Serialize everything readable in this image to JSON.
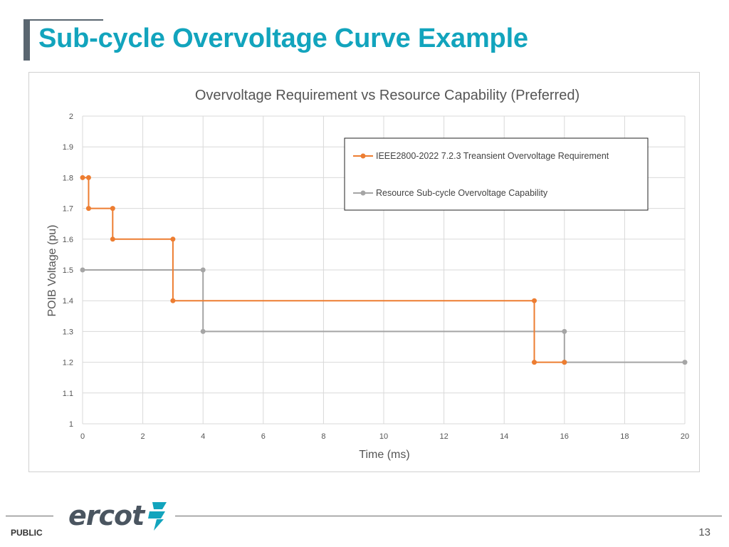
{
  "slide": {
    "title": "Sub-cycle Overvoltage Curve Example",
    "footer_label": "PUBLIC",
    "page_number": "13",
    "logo_text": "ercot",
    "title_color": "#12a4bd",
    "logo_icon": "ercot-lightning-icon"
  },
  "chart_data": {
    "type": "line",
    "title": "Overvoltage Requirement vs Resource Capability (Preferred)",
    "xlabel": "Time (ms)",
    "ylabel": "POIB Voltage (pu)",
    "xlim": [
      0,
      20
    ],
    "ylim": [
      1,
      2
    ],
    "xticks": [
      "0",
      "2",
      "4",
      "6",
      "8",
      "10",
      "12",
      "14",
      "16",
      "18",
      "20"
    ],
    "yticks": [
      "1",
      "1.1",
      "1.2",
      "1.3",
      "1.4",
      "1.5",
      "1.6",
      "1.7",
      "1.8",
      "1.9",
      "2"
    ],
    "grid": true,
    "legend_position": "top-right",
    "series": [
      {
        "name": "IEEE2800-2022 7.2.3 Treansient Overvoltage Requirement",
        "color": "#ed7d31",
        "x": [
          0,
          0.2,
          0.2,
          1,
          1,
          3,
          3,
          15,
          15,
          16
        ],
        "y": [
          1.8,
          1.8,
          1.7,
          1.7,
          1.6,
          1.6,
          1.4,
          1.4,
          1.2,
          1.2
        ]
      },
      {
        "name": "Resource Sub-cycle Overvoltage Capability",
        "color": "#a5a5a5",
        "x": [
          0,
          4,
          4,
          16,
          16,
          20
        ],
        "y": [
          1.5,
          1.5,
          1.3,
          1.3,
          1.2,
          1.2
        ]
      }
    ]
  }
}
